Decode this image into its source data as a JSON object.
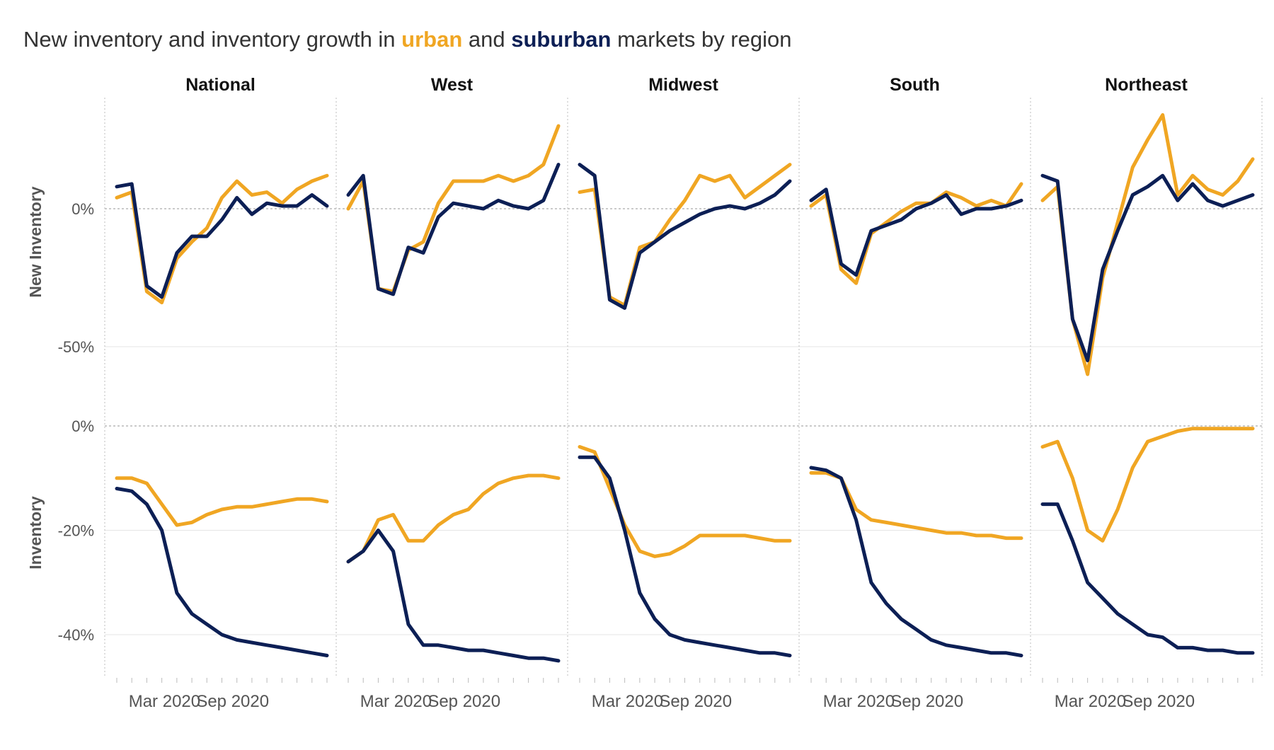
{
  "title": {
    "pre": "New inventory and inventory growth in ",
    "urban": "urban",
    "mid": " and ",
    "suburban": "suburban",
    "post": " markets by region"
  },
  "colors": {
    "urban": "#f0a623",
    "suburban": "#0c1f55"
  },
  "chart_data": {
    "type": "line",
    "panels": [
      "National",
      "West",
      "Midwest",
      "South",
      "Northeast"
    ],
    "rows": [
      {
        "label": "New Inventory",
        "ylim": [
          -60,
          40
        ],
        "y_ticks": [
          0,
          -50
        ],
        "y_tick_labels": [
          "0%",
          "-50%"
        ]
      },
      {
        "label": "Inventory",
        "ylim": [
          -48,
          0
        ],
        "y_ticks": [
          0,
          -20,
          -40
        ],
        "y_tick_labels": [
          "0%",
          "-20%",
          "-40%"
        ]
      }
    ],
    "x_ticks": [
      "Mar 2020",
      "Sep 2020"
    ],
    "x": [
      "2020-01",
      "2020-02",
      "2020-03",
      "2020-04",
      "2020-05",
      "2020-06",
      "2020-07",
      "2020-08",
      "2020-09",
      "2020-10",
      "2020-11",
      "2020-12",
      "2021-01",
      "2021-02",
      "2021-03"
    ],
    "series_names": [
      "urban",
      "suburban"
    ],
    "new_inventory": {
      "National": {
        "urban": [
          4,
          6,
          -30,
          -34,
          -18,
          -12,
          -7,
          4,
          10,
          5,
          6,
          2,
          7,
          10,
          12
        ],
        "suburban": [
          8,
          9,
          -28,
          -32,
          -16,
          -10,
          -10,
          -4,
          4,
          -2,
          2,
          1,
          1,
          5,
          1
        ]
      },
      "West": {
        "urban": [
          0,
          10,
          -29,
          -30,
          -15,
          -12,
          2,
          10,
          10,
          10,
          12,
          10,
          12,
          16,
          30
        ],
        "suburban": [
          5,
          12,
          -29,
          -31,
          -14,
          -16,
          -3,
          2,
          1,
          0,
          3,
          1,
          0,
          3,
          16
        ]
      },
      "Midwest": {
        "urban": [
          6,
          7,
          -32,
          -35,
          -14,
          -12,
          -4,
          3,
          12,
          10,
          12,
          4,
          8,
          12,
          16
        ],
        "suburban": [
          16,
          12,
          -33,
          -36,
          -16,
          -12,
          -8,
          -5,
          -2,
          0,
          1,
          0,
          2,
          5,
          10
        ]
      },
      "South": {
        "urban": [
          1,
          5,
          -22,
          -27,
          -9,
          -5,
          -1,
          2,
          2,
          6,
          4,
          1,
          3,
          1,
          9
        ],
        "suburban": [
          3,
          7,
          -20,
          -24,
          -8,
          -6,
          -4,
          0,
          2,
          5,
          -2,
          0,
          0,
          1,
          3
        ]
      },
      "Northeast": {
        "urban": [
          3,
          8,
          -40,
          -60,
          -25,
          -5,
          15,
          25,
          34,
          5,
          12,
          7,
          5,
          10,
          18
        ],
        "suburban": [
          12,
          10,
          -40,
          -55,
          -22,
          -8,
          5,
          8,
          12,
          3,
          9,
          3,
          1,
          3,
          5
        ]
      }
    },
    "inventory": {
      "National": {
        "urban": [
          -10,
          -10,
          -11,
          -15,
          -19,
          -18.5,
          -17,
          -16,
          -15.5,
          -15.5,
          -15,
          -14.5,
          -14,
          -14,
          -14.5
        ],
        "suburban": [
          -12,
          -12.5,
          -15,
          -20,
          -32,
          -36,
          -38,
          -40,
          -41,
          -41.5,
          -42,
          -42.5,
          -43,
          -43.5,
          -44
        ]
      },
      "West": {
        "urban": [
          -26,
          -24,
          -18,
          -17,
          -22,
          -22,
          -19,
          -17,
          -16,
          -13,
          -11,
          -10,
          -9.5,
          -9.5,
          -10
        ],
        "suburban": [
          -26,
          -24,
          -20,
          -24,
          -38,
          -42,
          -42,
          -42.5,
          -43,
          -43,
          -43.5,
          -44,
          -44.5,
          -44.5,
          -45
        ]
      },
      "Midwest": {
        "urban": [
          -4,
          -5,
          -12,
          -19,
          -24,
          -25,
          -24.5,
          -23,
          -21,
          -21,
          -21,
          -21,
          -21.5,
          -22,
          -22
        ],
        "suburban": [
          -6,
          -6,
          -10,
          -20,
          -32,
          -37,
          -40,
          -41,
          -41.5,
          -42,
          -42.5,
          -43,
          -43.5,
          -43.5,
          -44
        ]
      },
      "South": {
        "urban": [
          -9,
          -9,
          -10,
          -16,
          -18,
          -18.5,
          -19,
          -19.5,
          -20,
          -20.5,
          -20.5,
          -21,
          -21,
          -21.5,
          -21.5
        ],
        "suburban": [
          -8,
          -8.5,
          -10,
          -18,
          -30,
          -34,
          -37,
          -39,
          -41,
          -42,
          -42.5,
          -43,
          -43.5,
          -43.5,
          -44
        ]
      },
      "Northeast": {
        "urban": [
          -4,
          -3,
          -10,
          -20,
          -22,
          -16,
          -8,
          -3,
          -2,
          -1,
          -0.5,
          -0.5,
          -0.5,
          -0.5,
          -0.5
        ],
        "suburban": [
          -15,
          -15,
          -22,
          -30,
          -33,
          -36,
          -38,
          -40,
          -40.5,
          -42.5,
          -42.5,
          -43,
          -43,
          -43.5,
          -43.5
        ]
      }
    }
  }
}
